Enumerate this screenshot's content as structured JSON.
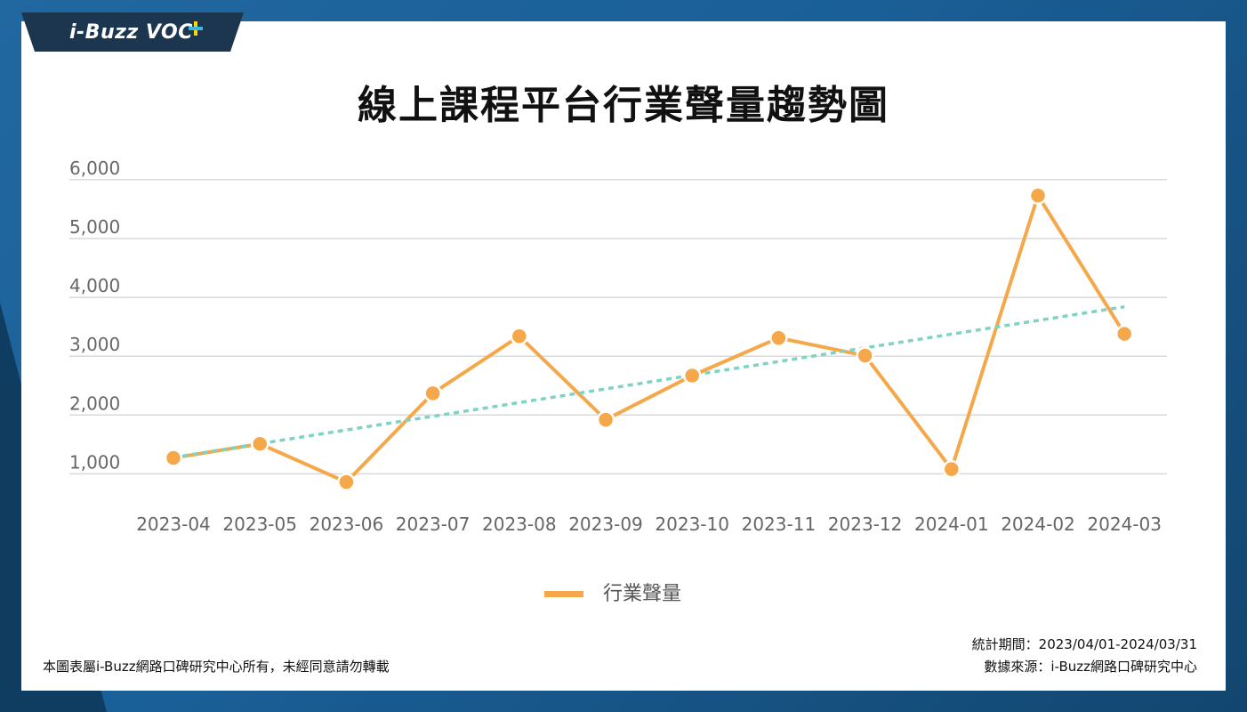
{
  "brand": {
    "logo_text": "i-Buzz VOC"
  },
  "colors": {
    "line": "#f4a84a",
    "trend": "#7fd3c3",
    "grid": "#d9d9d9",
    "tick": "#666666",
    "marker_stroke": "#ffffff"
  },
  "chart_data": {
    "type": "line",
    "title": "線上課程平台行業聲量趨勢圖",
    "xlabel": "",
    "ylabel": "",
    "categories": [
      "2023-04",
      "2023-05",
      "2023-06",
      "2023-07",
      "2023-08",
      "2023-09",
      "2023-10",
      "2023-11",
      "2023-12",
      "2024-01",
      "2024-02",
      "2024-03"
    ],
    "series": [
      {
        "name": "行業聲量",
        "values": [
          1270,
          1510,
          860,
          2370,
          3340,
          1920,
          2670,
          3310,
          3010,
          1080,
          5730,
          3380
        ]
      }
    ],
    "trendline": {
      "style": "dashed",
      "start": 1280,
      "end": 3840
    },
    "ylim": [
      0,
      6000
    ],
    "yticks": [
      1000,
      2000,
      3000,
      4000,
      5000,
      6000
    ],
    "ytick_labels": [
      "1,000",
      "2,000",
      "3,000",
      "4,000",
      "5,000",
      "6,000"
    ],
    "grid": true,
    "legend_position": "bottom"
  },
  "footer": {
    "copyright": "本圖表屬i-Buzz網路口碑研究中心所有，未經同意請勿轉載",
    "period": "統計期間：2023/04/01-2024/03/31",
    "source": "數據來源：i-Buzz網路口碑研究中心"
  }
}
